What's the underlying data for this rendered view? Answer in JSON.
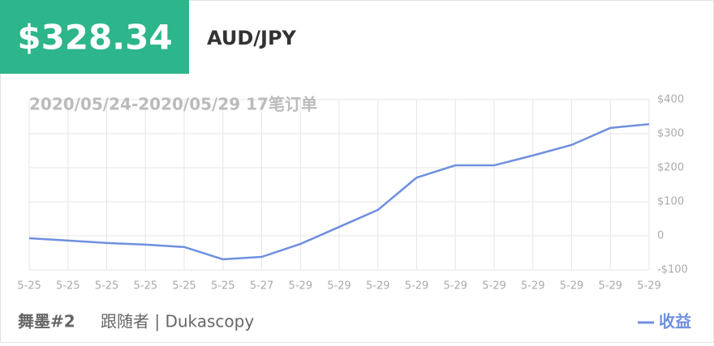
{
  "header": {
    "amount": "$328.34",
    "symbol": "AUD/JPY"
  },
  "chart_data": {
    "type": "line",
    "subtitle": "2020/05/24-2020/05/29 17笔订单",
    "categories": [
      "5-25",
      "5-25",
      "5-25",
      "5-25",
      "5-25",
      "5-25",
      "5-27",
      "5-29",
      "5-29",
      "5-29",
      "5-29",
      "5-29",
      "5-29",
      "5-29",
      "5-29",
      "5-29",
      "5-29"
    ],
    "series": [
      {
        "name": "收益",
        "color": "#6f8fe0",
        "values": [
          -7,
          -14,
          -21,
          -26,
          -33,
          -69,
          -62,
          -24,
          26,
          76,
          171,
          207,
          207,
          236,
          267,
          317,
          328
        ]
      }
    ],
    "ylim": [
      -100,
      400
    ],
    "yticks": [
      {
        "value": -100,
        "label": "-$100"
      },
      0,
      {
        "value": 100,
        "label": "$100"
      },
      {
        "value": 200,
        "label": "$200"
      },
      {
        "value": 300,
        "label": "$300"
      },
      {
        "value": 400,
        "label": "$400"
      }
    ],
    "grid": true
  },
  "footer": {
    "account": "舞墨#2",
    "follower": "跟随者 | Dukascopy"
  }
}
